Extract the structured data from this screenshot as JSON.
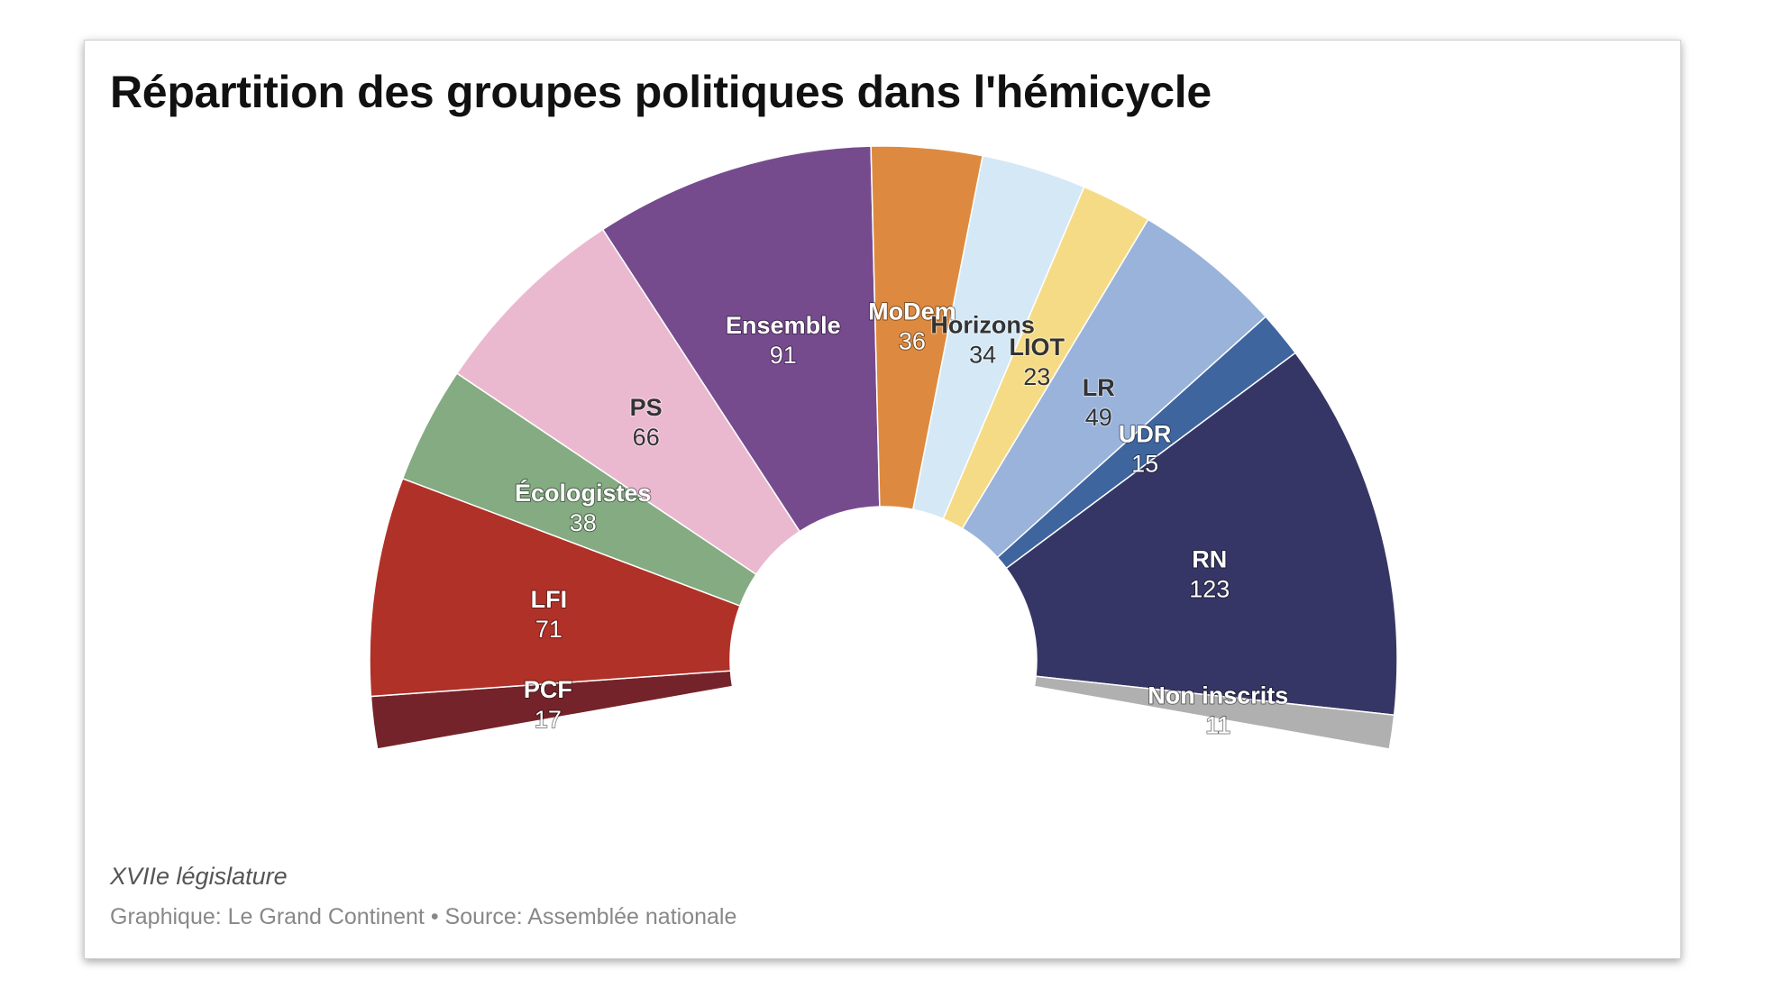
{
  "chart_data": {
    "type": "pie",
    "variant": "hemicycle",
    "title": "Répartition des groupes politiques dans l'hémicycle",
    "note": "XVIIe législature",
    "credit_label": "Graphique:",
    "credit": "Le Grand Continent",
    "source_label": "Source:",
    "source": "Assemblée nationale",
    "separator": "•",
    "categories": [
      "PCF",
      "LFI",
      "Écologistes",
      "PS",
      "Ensemble",
      "MoDem",
      "Horizons",
      "LIOT",
      "LR",
      "UDR",
      "RN",
      "Non inscrits"
    ],
    "values": [
      17,
      71,
      38,
      66,
      91,
      36,
      34,
      23,
      49,
      15,
      123,
      11
    ],
    "colors": [
      "#75232a",
      "#b03128",
      "#84ab81",
      "#eab9d0",
      "#764b8e",
      "#dd8a40",
      "#d4e8f6",
      "#f6db87",
      "#9ab3db",
      "#3f659f",
      "#363666",
      "#b0b0b0"
    ],
    "label_colors": [
      "#ffffff",
      "#ffffff",
      "#ffffff",
      "#333333",
      "#ffffff",
      "#ffffff",
      "#333333",
      "#333333",
      "#333333",
      "#ffffff",
      "#ffffff",
      "#ffffff"
    ]
  }
}
